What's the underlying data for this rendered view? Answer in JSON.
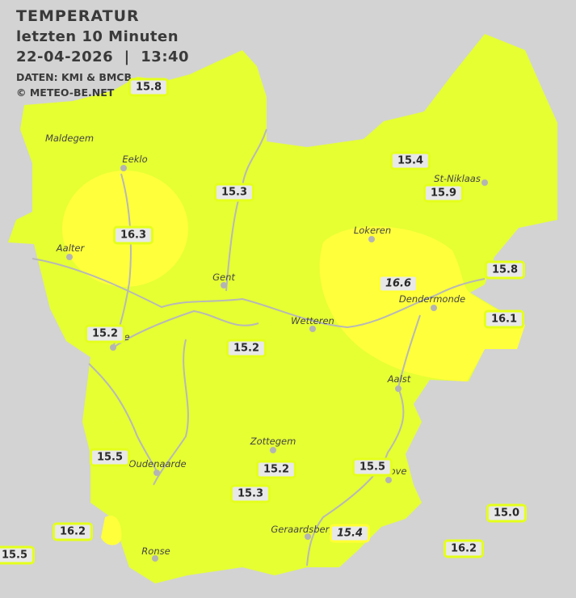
{
  "header": {
    "title": "TEMPERATUR",
    "subtitle": "letzten 10 Minuten",
    "datetime": "22-04-2026  |  13:40",
    "source": "DATEN: KMI & BMCB",
    "copyright": "© METEO-BE.NET"
  },
  "colors": {
    "background": "#d3d3d3",
    "temp_15_16": "#e5ff33",
    "temp_16_17": "#ffff3c",
    "rivers": "#b8b8b8"
  },
  "stations": [
    {
      "value": "15.8",
      "italic": false
    },
    {
      "value": "15.3",
      "italic": false
    },
    {
      "value": "16.3",
      "italic": false
    },
    {
      "value": "15.4",
      "italic": false
    },
    {
      "value": "15.9",
      "italic": false
    },
    {
      "value": "15.8",
      "italic": false
    },
    {
      "value": "16.6",
      "italic": true
    },
    {
      "value": "16.1",
      "italic": false
    },
    {
      "value": "15.2",
      "italic": false
    },
    {
      "value": "15.2",
      "italic": false
    },
    {
      "value": "15.5",
      "italic": false
    },
    {
      "value": "15.2",
      "italic": false
    },
    {
      "value": "15.5",
      "italic": false
    },
    {
      "value": "15.3",
      "italic": false
    },
    {
      "value": "15.0",
      "italic": false
    },
    {
      "value": "16.2",
      "italic": false
    },
    {
      "value": "15.4",
      "italic": true
    },
    {
      "value": "16.2",
      "italic": false
    },
    {
      "value": "15.5",
      "italic": false
    }
  ],
  "cities": [
    "Maldegem",
    "Eeklo",
    "Aalter",
    "Gent",
    "Lokeren",
    "St-Niklaas",
    "Wetteren",
    "Dendermonde",
    "Aalst",
    "Zottegem",
    "Oudenaarde",
    "Ronse",
    "Geraardsberg",
    "ove",
    "e"
  ]
}
